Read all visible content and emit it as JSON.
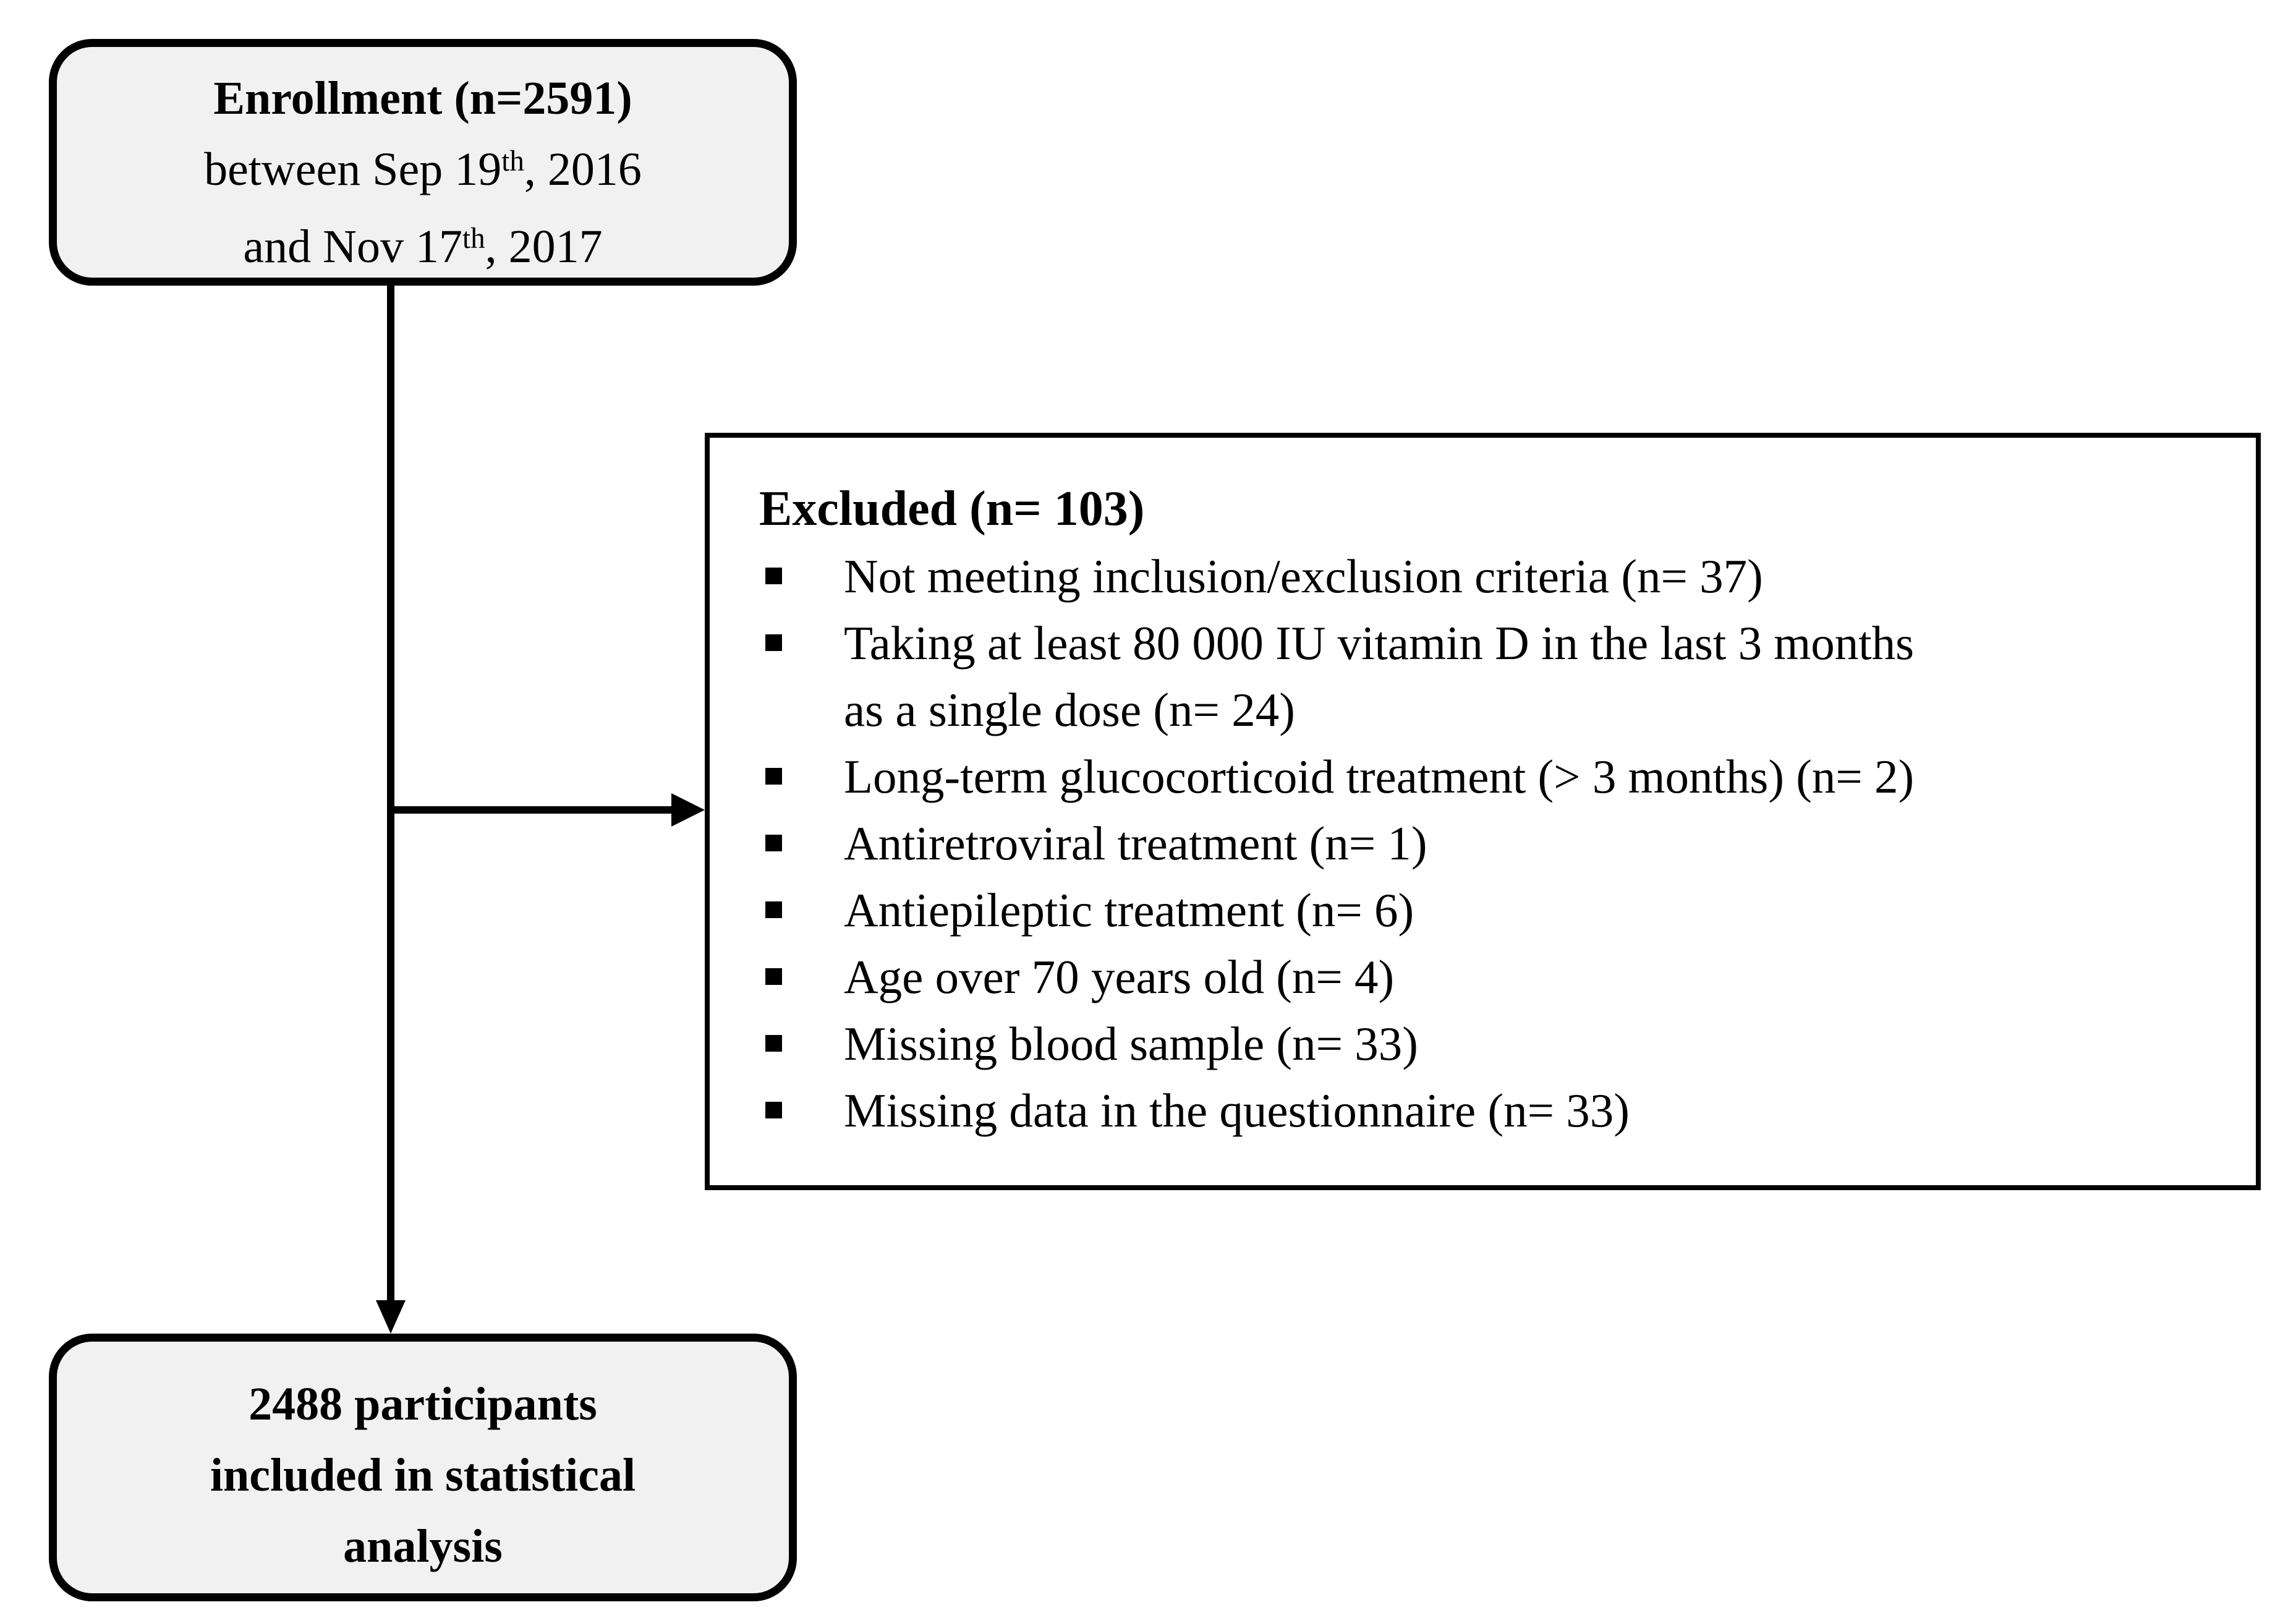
{
  "enrollment_box": {
    "title": "Enrollment (n=2591)",
    "date_line1": {
      "text": "between Sep 19",
      "sup": "th",
      "tail": ", 2016"
    },
    "date_line2": {
      "text": "and Nov 17",
      "sup": "th",
      "tail": ", 2017"
    }
  },
  "excluded_box": {
    "title": "Excluded (n= 103)",
    "items": [
      {
        "lines": [
          "Not meeting inclusion/exclusion criteria (n= 37)"
        ]
      },
      {
        "lines": [
          "Taking at least 80 000 IU vitamin D in the last 3 months",
          "as a single dose (n= 24)"
        ]
      },
      {
        "lines": [
          "Long-term glucocorticoid treatment (> 3 months) (n= 2)"
        ]
      },
      {
        "lines": [
          "Antiretroviral treatment (n= 1)"
        ]
      },
      {
        "lines": [
          "Antiepileptic treatment (n= 6)"
        ]
      },
      {
        "lines": [
          "Age over 70 years old (n= 4)"
        ]
      },
      {
        "lines": [
          "Missing blood sample (n= 33)"
        ]
      },
      {
        "lines": [
          "Missing data in the questionnaire (n= 33)"
        ]
      }
    ]
  },
  "final_box": {
    "lines": [
      "2488 participants",
      "included in statistical",
      "analysis"
    ]
  },
  "icons": {
    "bullet": "square-bullet",
    "arrow_down": "arrow-down",
    "arrow_right": "arrow-right"
  },
  "colors": {
    "background": "#ffffff",
    "box_fill": "#f1f1f1",
    "border": "#000000",
    "text": "#000000"
  }
}
